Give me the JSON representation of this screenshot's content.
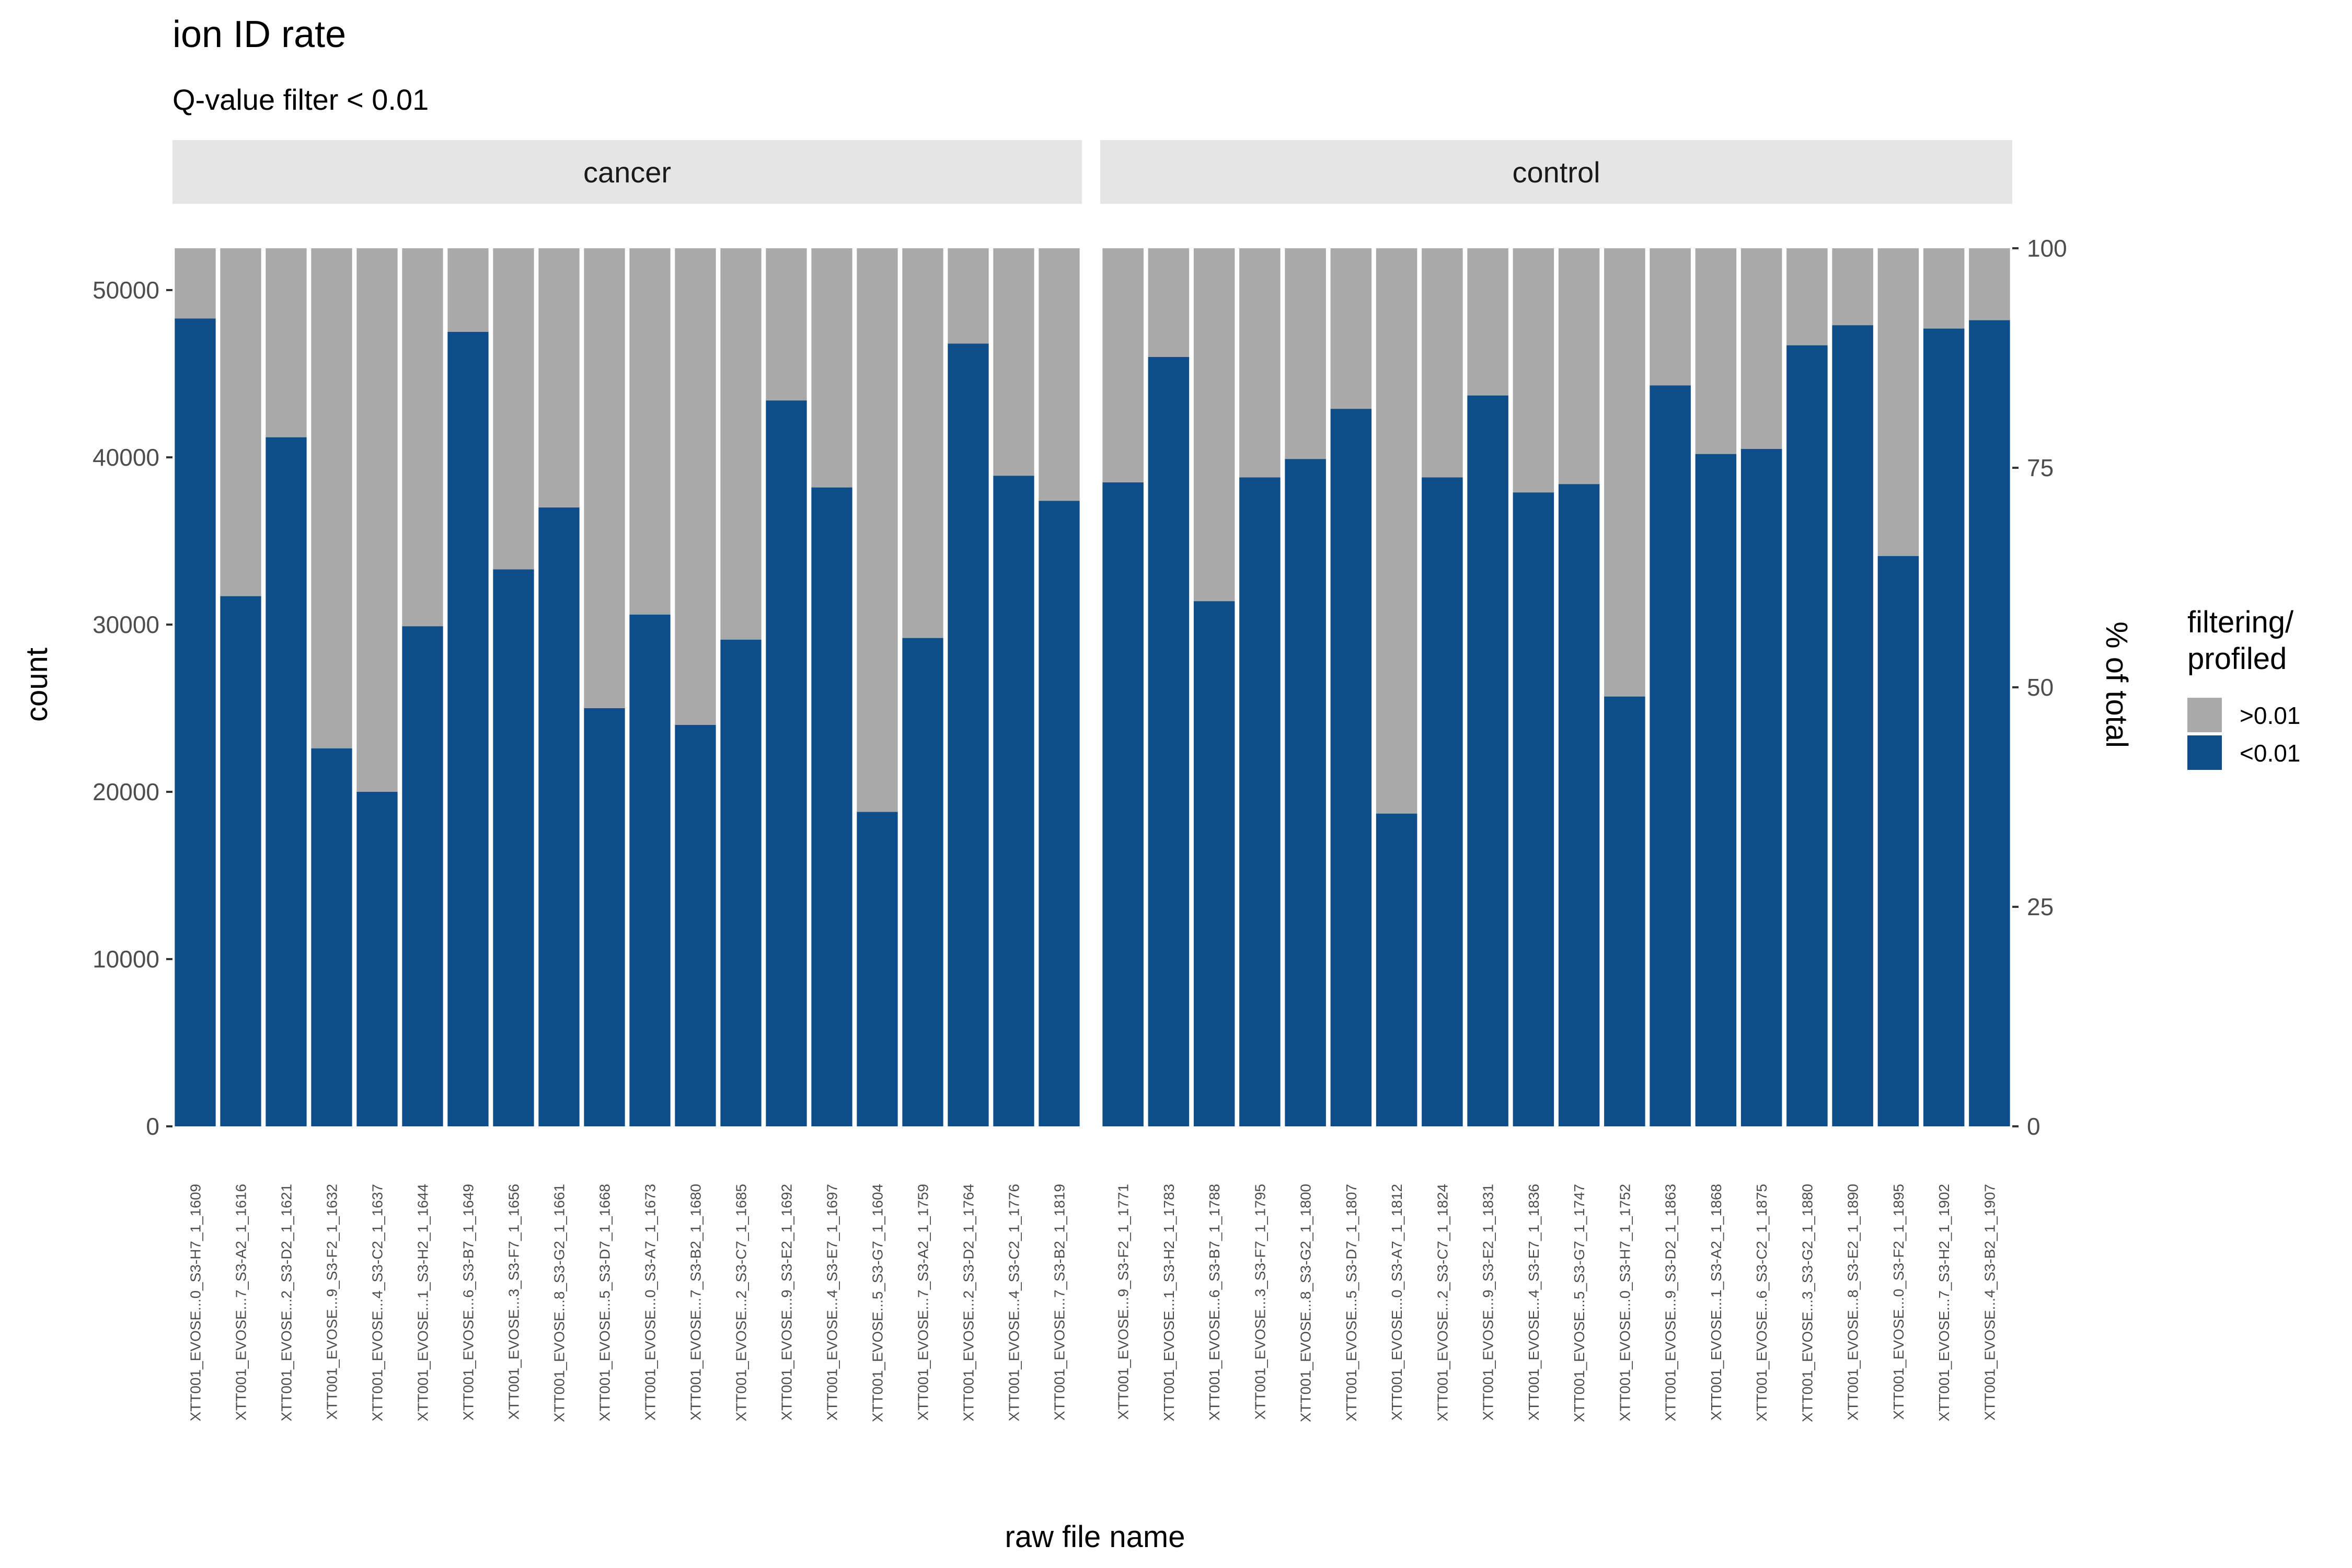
{
  "chart_data": {
    "type": "bar",
    "stacked": true,
    "title": "ion ID rate",
    "subtitle": "Q-value filter < 0.01",
    "xlabel": "raw file name",
    "ylabel": "count",
    "y2label": "% of total",
    "ylim": [
      0,
      52500
    ],
    "yticks": [
      0,
      10000,
      20000,
      30000,
      40000,
      50000
    ],
    "y2lim": [
      0,
      100
    ],
    "y2ticks": [
      0,
      25,
      50,
      75,
      100
    ],
    "total": 52500,
    "grid": false,
    "legend": {
      "title_lines": [
        "filtering/",
        "profiled"
      ],
      "position": "right",
      "items": [
        {
          "label": ">0.01",
          "color": "#A9A9A9"
        },
        {
          "label": "<0.01",
          "color": "#0F4C8A"
        }
      ]
    },
    "colors": {
      "above": "#A9A9A9",
      "below": "#0F4C8A",
      "strip": "#E5E5E5"
    },
    "panels": [
      {
        "name": "cancer",
        "categories": [
          "XTT001_EVOSE...0_S3-H7_1_1609",
          "XTT001_EVOSE...7_S3-A2_1_1616",
          "XTT001_EVOSE...2_S3-D2_1_1621",
          "XTT001_EVOSE...9_S3-F2_1_1632",
          "XTT001_EVOSE...4_S3-C2_1_1637",
          "XTT001_EVOSE...1_S3-H2_1_1644",
          "XTT001_EVOSE...6_S3-B7_1_1649",
          "XTT001_EVOSE...3_S3-F7_1_1656",
          "XTT001_EVOSE...8_S3-G2_1_1661",
          "XTT001_EVOSE...5_S3-D7_1_1668",
          "XTT001_EVOSE...0_S3-A7_1_1673",
          "XTT001_EVOSE...7_S3-B2_1_1680",
          "XTT001_EVOSE...2_S3-C7_1_1685",
          "XTT001_EVOSE...9_S3-E2_1_1692",
          "XTT001_EVOSE...4_S3-E7_1_1697",
          "XTT001_EVOSE...5_S3-G7_1_1604",
          "XTT001_EVOSE...7_S3-A2_1_1759",
          "XTT001_EVOSE...2_S3-D2_1_1764",
          "XTT001_EVOSE...4_S3-C2_1_1776",
          "XTT001_EVOSE...7_S3-B2_1_1819"
        ],
        "values_below": [
          48300,
          31700,
          41200,
          22600,
          20000,
          29900,
          47500,
          33300,
          37000,
          25000,
          30600,
          24000,
          29100,
          43400,
          38200,
          18800,
          29200,
          46800,
          38900,
          37400
        ]
      },
      {
        "name": "control",
        "categories": [
          "XTT001_EVOSE...9_S3-F2_1_1771",
          "XTT001_EVOSE...1_S3-H2_1_1783",
          "XTT001_EVOSE...6_S3-B7_1_1788",
          "XTT001_EVOSE...3_S3-F7_1_1795",
          "XTT001_EVOSE...8_S3-G2_1_1800",
          "XTT001_EVOSE...5_S3-D7_1_1807",
          "XTT001_EVOSE...0_S3-A7_1_1812",
          "XTT001_EVOSE...2_S3-C7_1_1824",
          "XTT001_EVOSE...9_S3-E2_1_1831",
          "XTT001_EVOSE...4_S3-E7_1_1836",
          "XTT001_EVOSE...5_S3-G7_1_1747",
          "XTT001_EVOSE...0_S3-H7_1_1752",
          "XTT001_EVOSE...9_S3-D2_1_1863",
          "XTT001_EVOSE...1_S3-A2_1_1868",
          "XTT001_EVOSE...6_S3-C2_1_1875",
          "XTT001_EVOSE...3_S3-G2_1_1880",
          "XTT001_EVOSE...8_S3-E2_1_1890",
          "XTT001_EVOSE...0_S3-F2_1_1895",
          "XTT001_EVOSE...7_S3-H2_1_1902",
          "XTT001_EVOSE...4_S3-B2_1_1907"
        ],
        "values_below": [
          38500,
          46000,
          31400,
          38800,
          39900,
          42900,
          18700,
          38800,
          43700,
          37900,
          38400,
          25700,
          44300,
          40200,
          40500,
          46700,
          47900,
          34100,
          47700,
          48200
        ]
      }
    ]
  }
}
